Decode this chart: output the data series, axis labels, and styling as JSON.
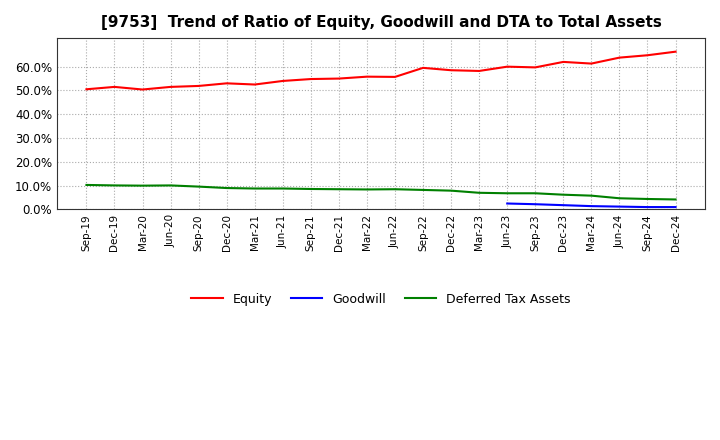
{
  "title": "[9753]  Trend of Ratio of Equity, Goodwill and DTA to Total Assets",
  "x_labels": [
    "Sep-19",
    "Dec-19",
    "Mar-20",
    "Jun-20",
    "Sep-20",
    "Dec-20",
    "Mar-21",
    "Jun-21",
    "Sep-21",
    "Dec-21",
    "Mar-22",
    "Jun-22",
    "Sep-22",
    "Dec-22",
    "Mar-23",
    "Jun-23",
    "Sep-23",
    "Dec-23",
    "Mar-24",
    "Jun-24",
    "Sep-24",
    "Dec-24"
  ],
  "equity": [
    0.505,
    0.515,
    0.504,
    0.515,
    0.519,
    0.53,
    0.525,
    0.54,
    0.548,
    0.55,
    0.558,
    0.557,
    0.595,
    0.585,
    0.582,
    0.6,
    0.597,
    0.62,
    0.613,
    0.638,
    0.648,
    0.663
  ],
  "goodwill": [
    null,
    null,
    null,
    null,
    null,
    null,
    null,
    null,
    null,
    null,
    null,
    null,
    null,
    null,
    null,
    0.025,
    0.022,
    0.018,
    0.014,
    0.012,
    0.01,
    0.01
  ],
  "dta": [
    0.103,
    0.101,
    0.1,
    0.101,
    0.096,
    0.09,
    0.088,
    0.088,
    0.086,
    0.085,
    0.084,
    0.085,
    0.082,
    0.079,
    0.07,
    0.068,
    0.068,
    0.062,
    0.058,
    0.047,
    0.044,
    0.042
  ],
  "equity_color": "#ff0000",
  "goodwill_color": "#0000ff",
  "dta_color": "#008000",
  "background_color": "#ffffff",
  "grid_color": "#aaaaaa",
  "ylim": [
    0.0,
    0.72
  ],
  "yticks": [
    0.0,
    0.1,
    0.2,
    0.3,
    0.4,
    0.5,
    0.6
  ],
  "legend_labels": [
    "Equity",
    "Goodwill",
    "Deferred Tax Assets"
  ]
}
